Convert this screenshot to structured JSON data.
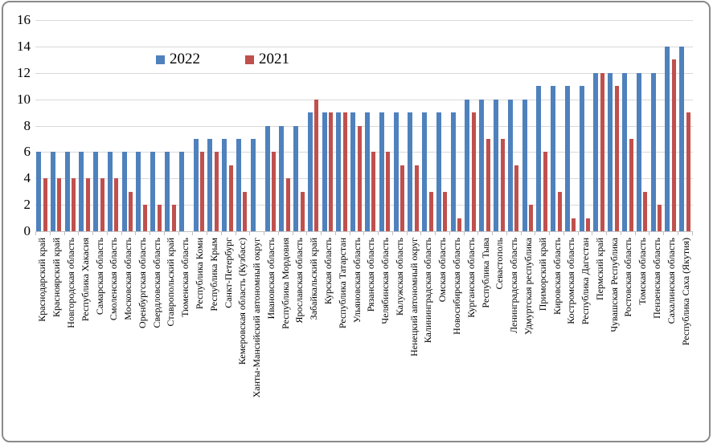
{
  "colors": {
    "series_2022": "#4F81BD",
    "series_2021": "#C0504D",
    "gridline": "#d9d9d9",
    "axis": "#bfbfbf",
    "frame_border": "#8a8a8a"
  },
  "chart_data": {
    "type": "bar",
    "title": "",
    "xlabel": "",
    "ylabel": "",
    "ylim": [
      0,
      16
    ],
    "ytick_step": 2,
    "yticks_top_to_bottom": [
      "16",
      "14",
      "12",
      "10",
      "8",
      "6",
      "4",
      "2",
      "0"
    ],
    "grid": "horizontal",
    "legend_position": "top-center",
    "categories": [
      "Краснодарский край",
      "Красноярский край",
      "Новгородская область",
      "Республика Хакасия",
      "Самарская область",
      "Смоленская область",
      "Московская область",
      "Оренбургская область",
      "Свердловская область",
      "Ставропольский край",
      "Тюменская область",
      "Республика Коми",
      "Республика Крым",
      "Санкт-Петербург",
      "Кемеровская область (Кузбасс)",
      "Ханты-Мансийский автономный округ",
      "Ивановская область",
      "Республика Мордовия",
      "Ярославская область",
      "Забайкальский край",
      "Курская область",
      "Республика Татарстан",
      "Ульяновская область",
      "Рязанская область",
      "Челябинская область",
      "Калужская область",
      "Ненецкий автономный округ",
      "Калининградская область",
      "Омская область",
      "Новосибирская область",
      "Курганская область",
      "Республика Тыва",
      "Севастополь",
      "Ленинградская область",
      "Удмуртская республика",
      "Приморский край",
      "Кировская область",
      "Костромская область",
      "Республика Дагестан",
      "Пермский край",
      "Чувашская Республика",
      "Ростовская область",
      "Томская область",
      "Пензенская область",
      "Сахалинская область",
      "Республика Саха (Якутия)"
    ],
    "series": [
      {
        "name": "2022",
        "color": "#4F81BD",
        "values": [
          6,
          6,
          6,
          6,
          6,
          6,
          6,
          6,
          6,
          6,
          6,
          7,
          7,
          7,
          7,
          7,
          8,
          8,
          8,
          9,
          9,
          9,
          9,
          9,
          9,
          9,
          9,
          9,
          9,
          9,
          10,
          10,
          10,
          10,
          10,
          11,
          11,
          11,
          11,
          12,
          12,
          12,
          12,
          12,
          14,
          14
        ]
      },
      {
        "name": "2021",
        "color": "#C0504D",
        "values": [
          4,
          4,
          4,
          4,
          4,
          4,
          3,
          2,
          2,
          2,
          0,
          6,
          6,
          5,
          3,
          0,
          6,
          4,
          3,
          10,
          9,
          9,
          8,
          6,
          6,
          5,
          5,
          3,
          3,
          1,
          9,
          7,
          7,
          5,
          2,
          6,
          3,
          1,
          1,
          12,
          11,
          7,
          3,
          2,
          13,
          9
        ]
      }
    ]
  }
}
